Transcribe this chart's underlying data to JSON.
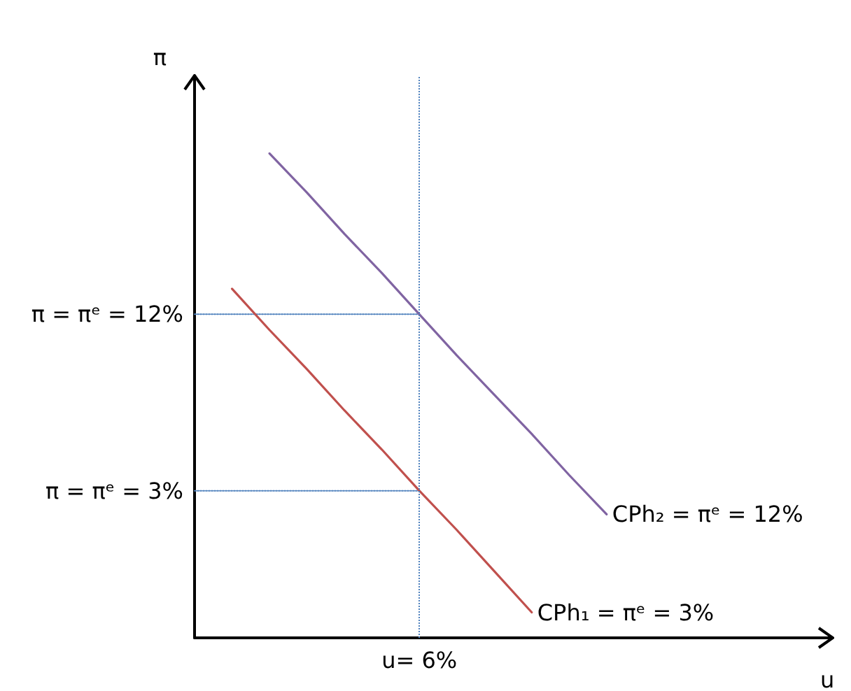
{
  "chart_data": {
    "type": "line",
    "xlabel": "u",
    "ylabel": "π",
    "categories": [
      null,
      null,
      null,
      null,
      null,
      null,
      "u= 6%",
      null,
      null,
      null,
      null,
      null,
      null,
      null,
      null,
      null,
      null,
      null
    ],
    "ylim": [
      -4.5,
      24.1
    ],
    "yticks": [
      {
        "value": 3,
        "label": "π = πᵉ = 3%"
      },
      {
        "value": 12,
        "label": "π = πᵉ = 12%"
      }
    ],
    "marker": "none",
    "line_style": "solid",
    "series": [
      {
        "color": "#4f81bd",
        "line_style": "dotted",
        "values": [
          12,
          12,
          12,
          12,
          12,
          12,
          12,
          null,
          null,
          null,
          null,
          null,
          null,
          null,
          null,
          null,
          null,
          null
        ]
      },
      {
        "color": "#4f81bd",
        "line_style": "dotted",
        "values": [
          3,
          3,
          3,
          3,
          3,
          3,
          3,
          null,
          null,
          null,
          null,
          null,
          null,
          null,
          null,
          null,
          null,
          null
        ]
      },
      {
        "name": "CPh₁ = πᵉ = 3%",
        "color": "#c0504d",
        "values": [
          null,
          13.3,
          11.2,
          9.2,
          7.1,
          5.1,
          3,
          1.0,
          -1.1,
          -3.2,
          null,
          null,
          null,
          null,
          null,
          null,
          null,
          null
        ]
      },
      {
        "name": "CPh₂ = πᵉ = 12%",
        "color": "#8064a2",
        "values": [
          null,
          null,
          20.2,
          18.2,
          16.1,
          14.1,
          12,
          9.9,
          7.9,
          5.9,
          3.8,
          1.8,
          null,
          null,
          null,
          null,
          null,
          null
        ]
      }
    ],
    "ref_lines": [
      {
        "axis": "x",
        "value": "u= 6%",
        "color": "#4f81bd",
        "line_style": "dotted"
      }
    ]
  }
}
